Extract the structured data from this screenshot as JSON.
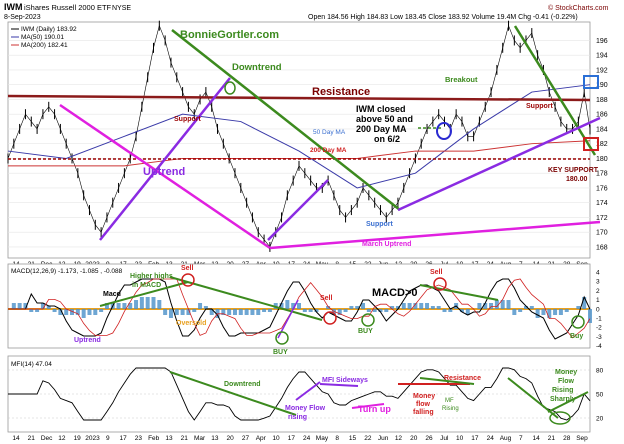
{
  "header": {
    "ticker": "IWM",
    "name": "iShares Russell 2000 ETF",
    "exchange": "NYSE",
    "date": "8-Sep-2023",
    "ohlc": "Open 184.56  High 184.83  Low 183.45  Close 183.92  Volume 19.4M  Chg -0.41 (-0.22%)",
    "watermark": "© StockCharts.com"
  },
  "legend": {
    "price": "IWM (Daily) 183.92",
    "ma50": "MA(50) 190.01",
    "ma200": "MA(200) 182.41"
  },
  "colors": {
    "ma50": "#3a3aa8",
    "ma200": "#cc3333",
    "trend_up": "#8a2be2",
    "trend_magenta": "#e020e0",
    "trend_green": "#3c8a1e",
    "resistance": "#8b1a1a",
    "support_dotted": "#9b0000",
    "macd_hist": "#4a90c8",
    "macd_zero": "#e8a020",
    "blue_box": "#2a6fd6",
    "red_box": "#d02020"
  },
  "annotations": {
    "site": "BonnieGortler.com",
    "downtrend": "Downtrend",
    "resistance": "Resistance",
    "uptrend": "Uptrend",
    "support_left": "Support",
    "support_bottom": "Support",
    "support_right": "Support",
    "breakout": "Breakout",
    "iwm_closed": [
      "IWM closed",
      "above 50 and",
      "200 Day MA",
      "on 6/2"
    ],
    "ma50_label": "50 Day MA",
    "ma200_label": "200 Day MA",
    "march_uptrend": "March Uptrend",
    "key_support": "KEY SUPPORT",
    "key_support_value": "180.00"
  },
  "macd": {
    "title": "MACD(12,26,9) -1.173, -1.085 , -0.088",
    "labels": {
      "higher_highs": [
        "Higher highs",
        "in MACD"
      ],
      "macd_left": "Macd",
      "uptrend": "Uptrend",
      "oversold": "Oversold",
      "sell1": "Sell",
      "sell2": "Sell",
      "sell3": "Sell",
      "buy1": "BUY",
      "buy2": "BUY",
      "buy3": "Buy",
      "macd_gt0": "MACD>0"
    },
    "yticks": [
      "4",
      "3",
      "2",
      "1",
      "0",
      "-1",
      "-2",
      "-3",
      "-4"
    ]
  },
  "mfi": {
    "title": "MFI(14) 47.04",
    "labels": {
      "downtrend": "Downtrend",
      "money_flow_rising": [
        "Money Flow",
        "rising"
      ],
      "mfi_sideways": "MFI Sideways",
      "turn_up": "Turn up",
      "resistance": "Resistance",
      "money_flow_falling": [
        "Money",
        "flow",
        "falling"
      ],
      "mf_rising": [
        "MF",
        "Rising"
      ],
      "money_flow_rising_sharply": [
        "Money",
        "Flow",
        "Rising",
        "Sharply"
      ]
    },
    "yticks": [
      "80",
      "50",
      "20"
    ]
  },
  "chart_data": {
    "type": "line",
    "title": "IWM iShares Russell 2000 ETF NYSE",
    "ylim": [
      166.5,
      198.5
    ],
    "yticks": [
      "196",
      "194",
      "192",
      "190",
      "188",
      "186",
      "184",
      "182",
      "180",
      "178",
      "176",
      "174",
      "172",
      "170",
      "168"
    ],
    "xticks": [
      "14",
      "21",
      "Dec",
      "12",
      "19",
      "2023",
      "9",
      "17",
      "23",
      "Feb",
      "13",
      "21",
      "Mar",
      "13",
      "20",
      "27",
      "Apr",
      "10",
      "17",
      "24",
      "May",
      "8",
      "15",
      "22",
      "Jun",
      "12",
      "20",
      "26",
      "Jul",
      "10",
      "17",
      "24",
      "Aug",
      "7",
      "14",
      "21",
      "28",
      "Sep"
    ],
    "resistance_level": 188.5,
    "key_support_level": 180.0,
    "series": [
      {
        "name": "IWM (Daily)",
        "x": [
          0,
          2,
          4,
          6,
          8,
          10,
          12,
          14,
          16,
          18,
          20,
          22,
          24,
          26,
          28,
          30,
          32,
          34,
          36,
          38,
          40,
          42,
          44,
          46,
          48,
          50,
          52,
          54,
          56,
          58,
          60,
          62,
          64,
          66,
          68,
          70,
          72,
          74,
          76,
          78,
          80,
          82,
          84,
          86,
          88,
          90,
          92,
          94,
          96,
          98,
          100,
          102,
          104,
          106,
          108,
          110,
          112,
          114,
          116,
          118,
          120,
          122,
          124,
          126,
          128,
          130,
          132,
          134,
          136,
          138,
          140,
          142,
          144,
          146,
          148,
          150,
          152,
          154,
          156,
          158,
          160,
          162,
          164,
          166,
          168,
          170,
          172,
          174,
          176,
          178,
          180,
          182,
          184,
          186,
          188,
          190,
          192,
          194,
          196,
          198,
          200
        ],
        "values": [
          180,
          182,
          184,
          186,
          185,
          184,
          186,
          187,
          186,
          184,
          182,
          180,
          178,
          175,
          173,
          171,
          170,
          172,
          174,
          176,
          178,
          180,
          183,
          187,
          191,
          195,
          198,
          196,
          193,
          191,
          189,
          187,
          186,
          188,
          189,
          187,
          184,
          182,
          180,
          178,
          176,
          174,
          172,
          170,
          169,
          168,
          170,
          172,
          175,
          177,
          179,
          178,
          177,
          176,
          176,
          177,
          175,
          173,
          172,
          173,
          174,
          176,
          175,
          174,
          173,
          172,
          173,
          174,
          176,
          178,
          180,
          182,
          184,
          185,
          186,
          185,
          184,
          186,
          185,
          183,
          183,
          185,
          187,
          189,
          192,
          195,
          198,
          196,
          195,
          196,
          197,
          194,
          192,
          189,
          187,
          185,
          184,
          184,
          185,
          189,
          183.92
        ]
      },
      {
        "name": "MA(50)",
        "x": [
          0,
          20,
          40,
          60,
          80,
          100,
          120,
          140,
          160,
          180,
          200
        ],
        "values": [
          181,
          180,
          183,
          186,
          185,
          181,
          176,
          178,
          184,
          189,
          190
        ]
      },
      {
        "name": "MA(200)",
        "x": [
          0,
          20,
          40,
          60,
          80,
          100,
          120,
          140,
          160,
          180,
          200
        ],
        "values": [
          179,
          179,
          179,
          180,
          180,
          180,
          180,
          181,
          181,
          182,
          182.4
        ]
      }
    ]
  }
}
